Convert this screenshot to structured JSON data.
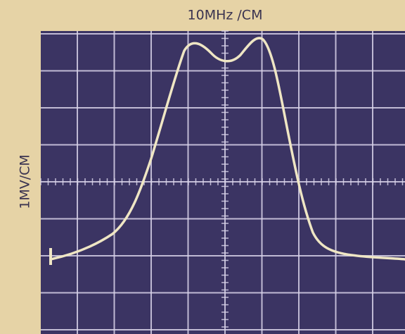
{
  "header": {
    "x_scale": "10MHz /CM",
    "y_scale": "1MV/CM"
  }
}
